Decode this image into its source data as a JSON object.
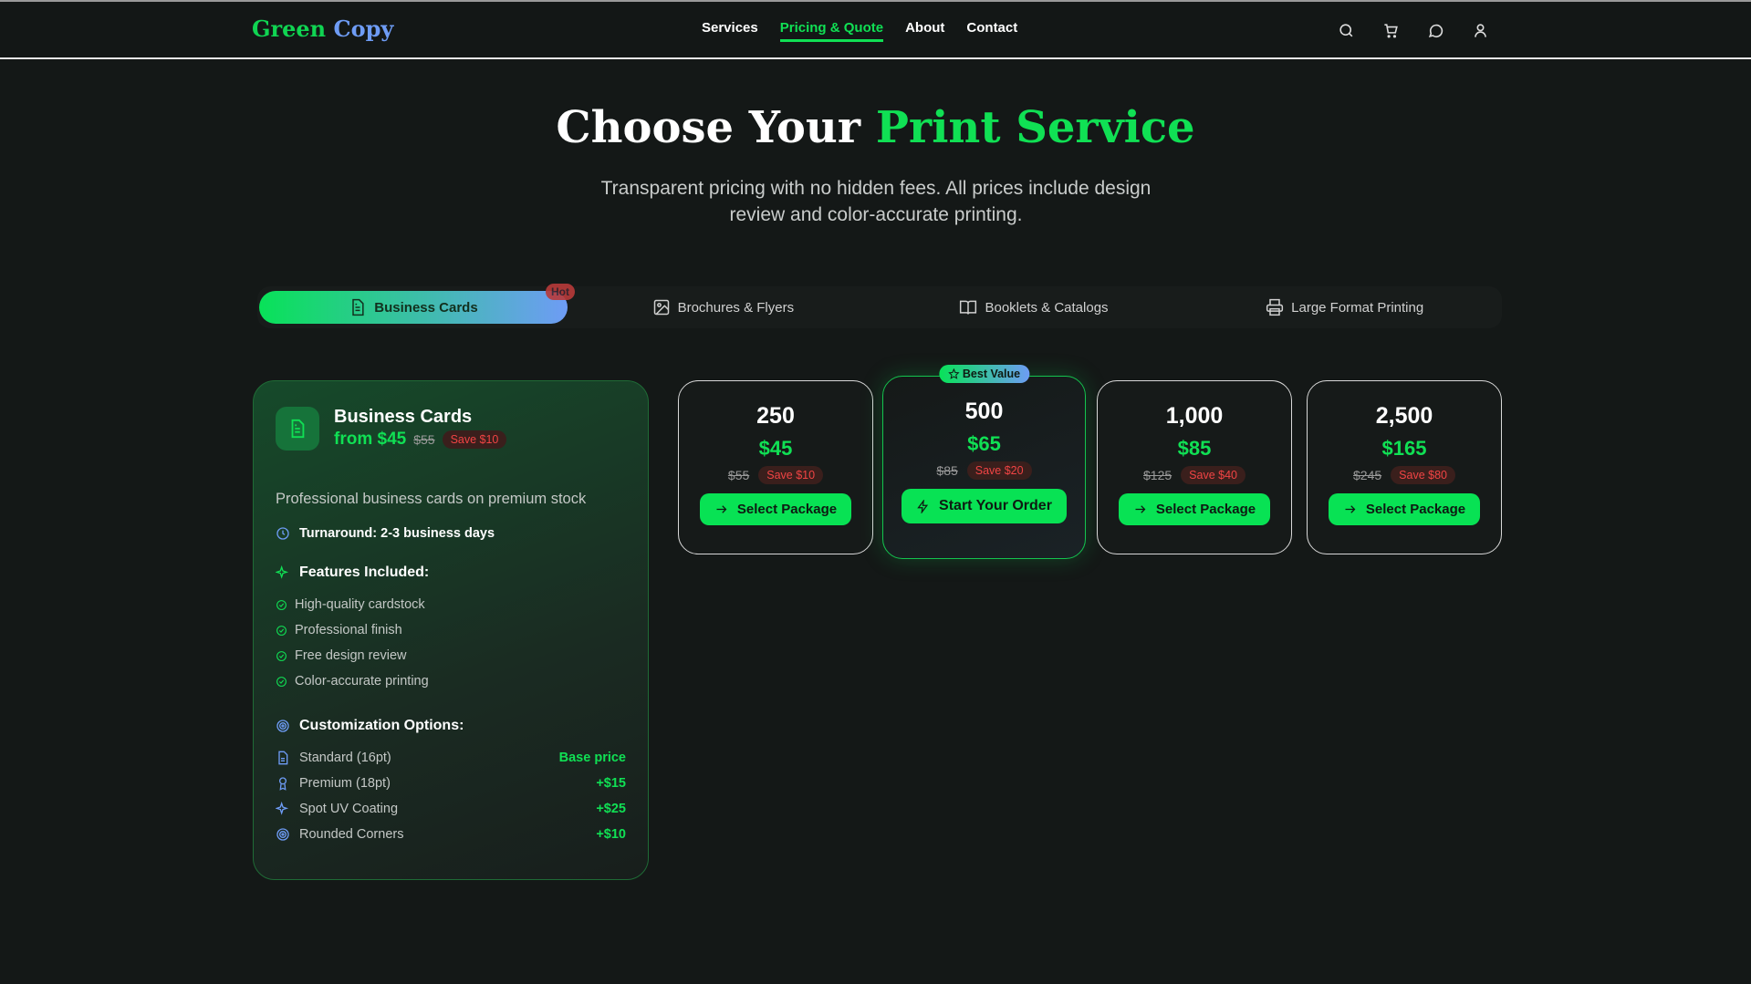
{
  "brand": {
    "first": "Green",
    "second": "Copy"
  },
  "nav": {
    "links": [
      "Services",
      "Pricing & Quote",
      "About",
      "Contact"
    ],
    "active": "Pricing & Quote",
    "icons": [
      "search-icon",
      "cart-icon",
      "message-icon",
      "user-icon"
    ]
  },
  "hero": {
    "title_a": "Choose Your ",
    "title_b": "Print Service",
    "subtitle": "Transparent pricing with no hidden fees. All prices include design review and color-accurate printing."
  },
  "tabs": [
    {
      "label": "Business Cards",
      "badge": "Hot",
      "active": true
    },
    {
      "label": "Brochures & Flyers"
    },
    {
      "label": "Booklets & Catalogs"
    },
    {
      "label": "Large Format Printing"
    }
  ],
  "service": {
    "title": "Business Cards",
    "from": "from $45",
    "original": "$55",
    "save": "Save $10",
    "description": "Professional business cards on premium stock",
    "turnaround": "Turnaround: 2-3 business days",
    "features_title": "Features Included:",
    "features": [
      "High-quality cardstock",
      "Professional finish",
      "Free design review",
      "Color-accurate printing"
    ],
    "options_title": "Customization Options:",
    "options": [
      {
        "name": "Standard (16pt)",
        "price": "Base price"
      },
      {
        "name": "Premium (18pt)",
        "price": "+$15"
      },
      {
        "name": "Spot UV Coating",
        "price": "+$25"
      },
      {
        "name": "Rounded Corners",
        "price": "+$10"
      }
    ]
  },
  "packages": [
    {
      "qty": "250",
      "price": "$45",
      "original": "$55",
      "save": "Save $10",
      "button": "Select Package"
    },
    {
      "qty": "500",
      "price": "$65",
      "original": "$85",
      "save": "Save $20",
      "button": "Start Your Order",
      "badge": "Best Value"
    },
    {
      "qty": "1,000",
      "price": "$85",
      "original": "$125",
      "save": "Save $40",
      "button": "Select Package"
    },
    {
      "qty": "2,500",
      "price": "$165",
      "original": "$245",
      "save": "Save $80",
      "button": "Select Package"
    }
  ],
  "colors": {
    "accent": "#10e054",
    "blue": "#6e9cf5",
    "background": "#141817",
    "save": "#f04444"
  }
}
